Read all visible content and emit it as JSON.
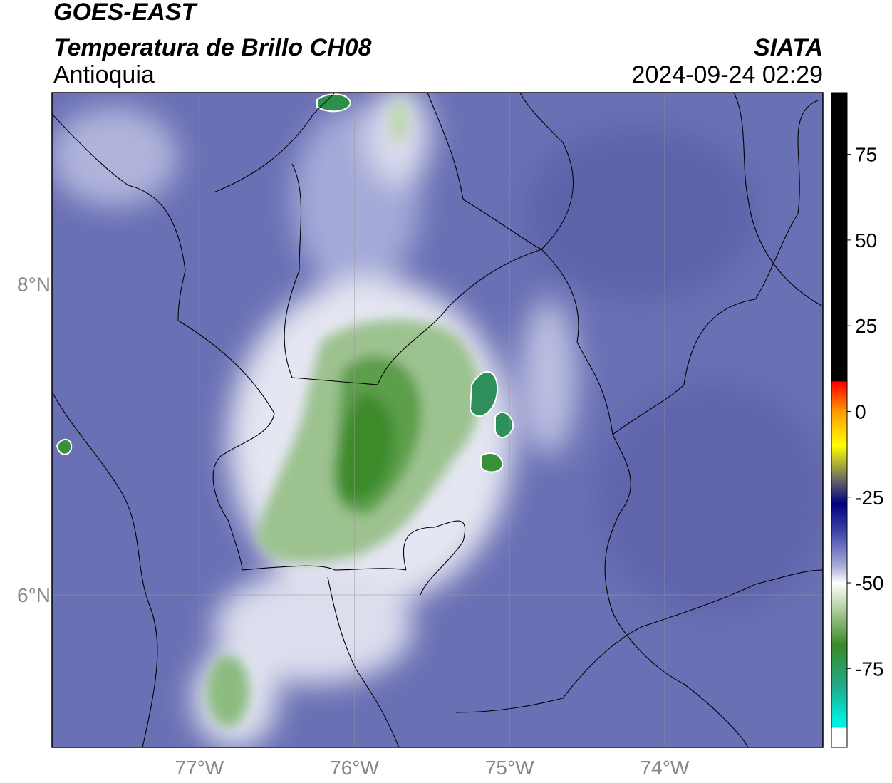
{
  "header": {
    "title": "GOES-EAST",
    "subtitle": "Temperatura de Brillo CH08",
    "source": "SIATA",
    "region": "Antioquia",
    "datetime": "2024-09-24 02:29"
  },
  "map": {
    "xlim": [
      -77.95,
      -72.98
    ],
    "ylim": [
      5.02,
      9.23
    ],
    "xticks": [
      {
        "value": -77,
        "label": "77°W"
      },
      {
        "value": -76,
        "label": "76°W"
      },
      {
        "value": -75,
        "label": "75°W"
      },
      {
        "value": -74,
        "label": "74°W"
      }
    ],
    "yticks": [
      {
        "value": 6,
        "label": "6°N"
      },
      {
        "value": 8,
        "label": "8°N"
      }
    ],
    "grid": true
  },
  "colorbar": {
    "lim": [
      -98,
      93
    ],
    "ticks": [
      -75,
      -50,
      -25,
      0,
      25,
      50,
      75
    ]
  }
}
